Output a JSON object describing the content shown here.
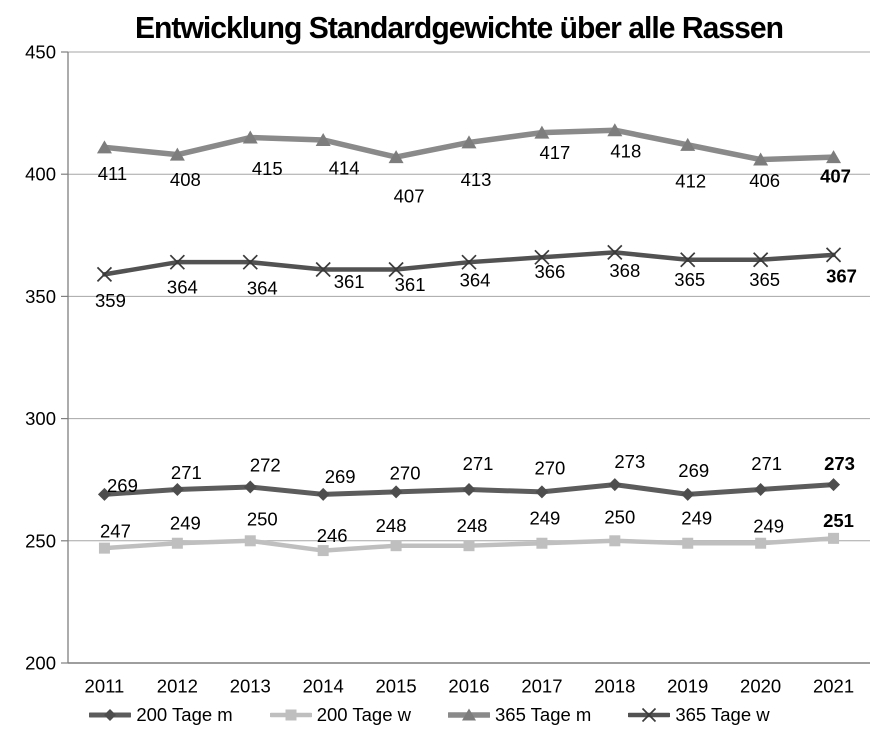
{
  "page": {
    "background": "#ffffff"
  },
  "chart_data": {
    "type": "line",
    "title": "Entwicklung Standardgewichte über alle Rassen",
    "xlabel": "",
    "ylabel": "",
    "categories": [
      "2011",
      "2012",
      "2013",
      "2014",
      "2015",
      "2016",
      "2017",
      "2018",
      "2019",
      "2020",
      "2021"
    ],
    "y_axis": {
      "min": 200,
      "max": 450,
      "tick_step": 50,
      "ticks": [
        200,
        250,
        300,
        350,
        400,
        450
      ]
    },
    "grid": true,
    "legend_position": "bottom",
    "last_label_bold": true,
    "colors": {
      "grid": "#a6a6a6",
      "axis": "#7f7f7f",
      "label_text": "#000000"
    },
    "series": [
      {
        "name": "200 Tage m",
        "marker": "diamond",
        "color": "#5c5c5c",
        "marker_color": "#4d4d4d",
        "line_width": 5,
        "values": [
          269,
          271,
          272,
          269,
          270,
          271,
          270,
          273,
          269,
          271,
          273
        ],
        "label_side": "above",
        "label_offsets": [
          [
            18,
            -9
          ],
          [
            9,
            -17
          ],
          [
            15,
            -22
          ],
          [
            17,
            -18
          ],
          [
            9,
            -19
          ],
          [
            9,
            -26
          ],
          [
            8,
            -24
          ],
          [
            15,
            -23
          ],
          [
            6,
            -24
          ],
          [
            6,
            -26
          ],
          [
            6,
            -21
          ]
        ]
      },
      {
        "name": "200 Tage w",
        "marker": "square",
        "color": "#bfbfbf",
        "marker_color": "#bfbfbf",
        "line_width": 4.5,
        "values": [
          247,
          249,
          250,
          246,
          248,
          248,
          249,
          250,
          249,
          249,
          251
        ],
        "label_side": "above",
        "label_offsets": [
          [
            11,
            -17
          ],
          [
            8,
            -20
          ],
          [
            12,
            -22
          ],
          [
            9,
            -15
          ],
          [
            -5,
            -20
          ],
          [
            3,
            -20
          ],
          [
            3,
            -25
          ],
          [
            5,
            -24
          ],
          [
            9,
            -25
          ],
          [
            8,
            -17
          ],
          [
            5,
            -18
          ]
        ]
      },
      {
        "name": "365 Tage m",
        "marker": "triangle",
        "color": "#8a8a8a",
        "marker_color": "#7d7d7d",
        "line_width": 5.5,
        "values": [
          411,
          408,
          415,
          414,
          407,
          413,
          417,
          418,
          412,
          406,
          407
        ],
        "label_side": "below",
        "label_offsets": [
          [
            8,
            26
          ],
          [
            8,
            25
          ],
          [
            17,
            31
          ],
          [
            21,
            28
          ],
          [
            13,
            39
          ],
          [
            7,
            37
          ],
          [
            13,
            20
          ],
          [
            11,
            21
          ],
          [
            3,
            36
          ],
          [
            4,
            21
          ],
          [
            2,
            19
          ]
        ]
      },
      {
        "name": "365 Tage w",
        "marker": "x",
        "color": "#525252",
        "marker_color": "#3a3a3a",
        "line_width": 4.5,
        "values": [
          359,
          364,
          364,
          361,
          361,
          364,
          366,
          368,
          365,
          365,
          367
        ],
        "label_side": "below",
        "label_offsets": [
          [
            6,
            26
          ],
          [
            5,
            25
          ],
          [
            12,
            26
          ],
          [
            26,
            12
          ],
          [
            14,
            15
          ],
          [
            6,
            18
          ],
          [
            8,
            14
          ],
          [
            10,
            18
          ],
          [
            2,
            20
          ],
          [
            4,
            20
          ],
          [
            8,
            21
          ]
        ]
      }
    ]
  }
}
